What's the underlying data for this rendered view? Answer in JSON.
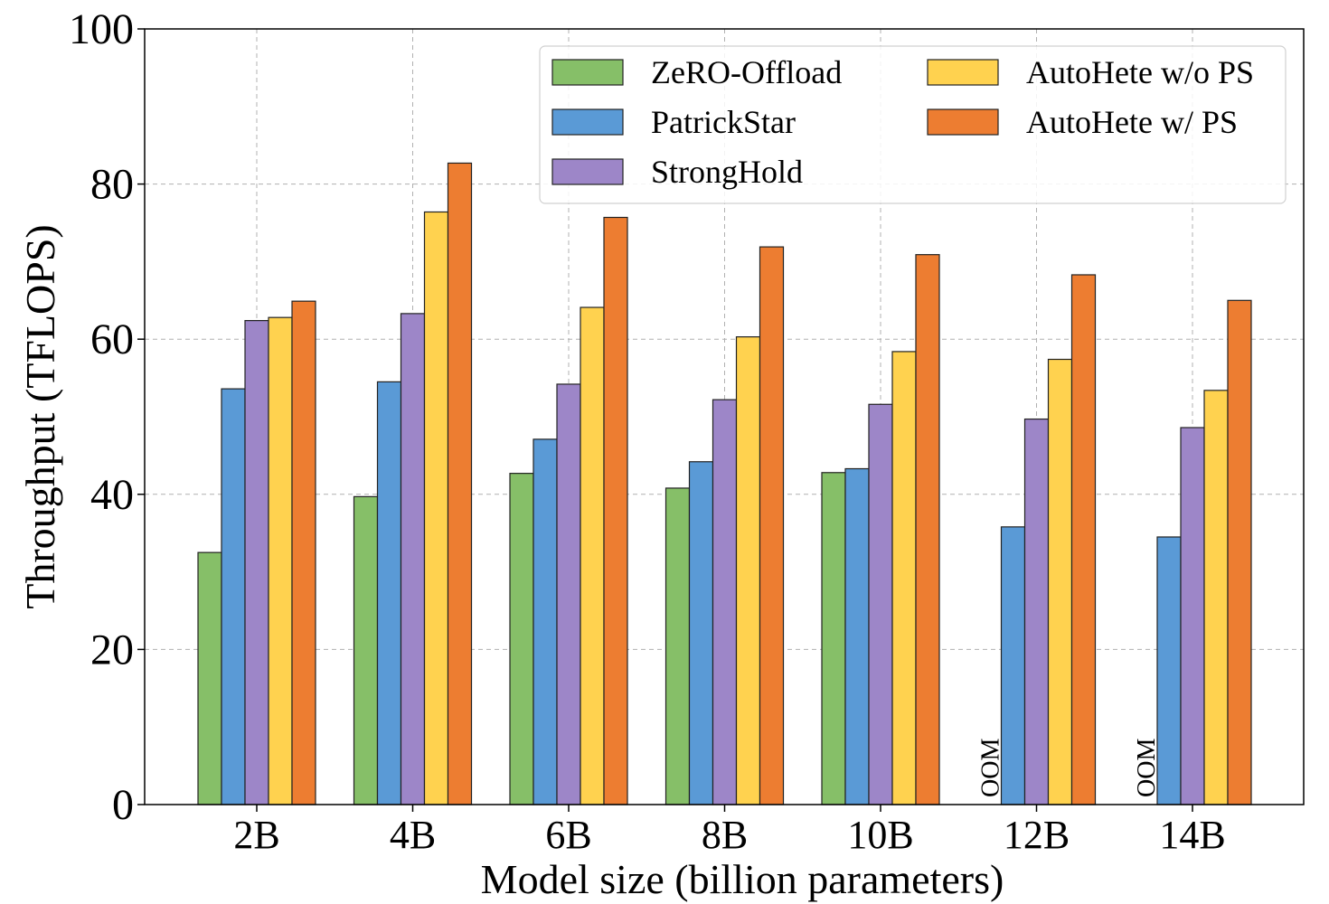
{
  "chart_data": {
    "type": "bar",
    "title": "",
    "xlabel": "Model size (billion parameters)",
    "ylabel": "Throughput (TFLOPS)",
    "ylim": [
      0,
      100
    ],
    "yticks": [
      0,
      20,
      40,
      60,
      80,
      100
    ],
    "grid": true,
    "legend_position": "top-right",
    "categories": [
      "2B",
      "4B",
      "6B",
      "8B",
      "10B",
      "12B",
      "14B"
    ],
    "series": [
      {
        "name": "ZeRO-Offload",
        "color": "#86BF68",
        "values": [
          32.5,
          39.7,
          42.7,
          40.8,
          42.8,
          null,
          null
        ]
      },
      {
        "name": "PatrickStar",
        "color": "#5A9AD6",
        "values": [
          53.6,
          54.5,
          47.1,
          44.2,
          43.3,
          35.8,
          34.5
        ]
      },
      {
        "name": "StrongHold",
        "color": "#9D86C8",
        "values": [
          62.4,
          63.3,
          54.2,
          52.2,
          51.6,
          49.7,
          48.6
        ]
      },
      {
        "name": "AutoHete w/o PS",
        "color": "#FFD24F",
        "values": [
          62.8,
          76.4,
          64.1,
          60.3,
          58.4,
          57.4,
          53.4
        ]
      },
      {
        "name": "AutoHete w/ PS",
        "color": "#ED7D31",
        "values": [
          64.9,
          82.7,
          75.7,
          71.9,
          70.9,
          68.3,
          65.0
        ]
      }
    ],
    "annotations": [
      {
        "category": "12B",
        "series": "ZeRO-Offload",
        "text": "OOM"
      },
      {
        "category": "14B",
        "series": "ZeRO-Offload",
        "text": "OOM"
      }
    ]
  }
}
